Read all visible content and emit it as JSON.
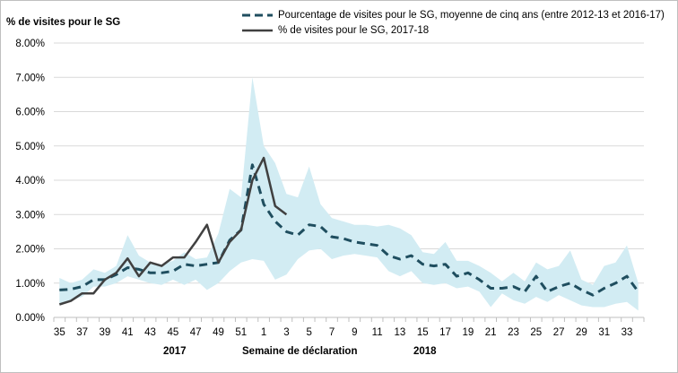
{
  "chart_data": {
    "type": "line",
    "ylabel": "% de visites pour le SG",
    "xlabel": "Semaine de déclaration",
    "year_labels": [
      "2017",
      "2018"
    ],
    "ylim": [
      0,
      8
    ],
    "y_ticks": [
      "0.00%",
      "1.00%",
      "2.00%",
      "3.00%",
      "4.00%",
      "5.00%",
      "6.00%",
      "7.00%",
      "8.00%"
    ],
    "x_weeks": [
      35,
      36,
      37,
      38,
      39,
      40,
      41,
      42,
      43,
      44,
      45,
      46,
      47,
      48,
      49,
      50,
      51,
      52,
      1,
      2,
      3,
      4,
      5,
      6,
      7,
      8,
      9,
      10,
      11,
      12,
      13,
      14,
      15,
      16,
      17,
      18,
      19,
      20,
      21,
      22,
      23,
      24,
      25,
      26,
      27,
      28,
      29,
      30,
      31,
      32,
      33,
      34
    ],
    "x_tick_labels": [
      "35",
      "37",
      "39",
      "41",
      "43",
      "45",
      "47",
      "49",
      "51",
      "1",
      "3",
      "5",
      "7",
      "9",
      "11",
      "13",
      "15",
      "17",
      "19",
      "21",
      "23",
      "25",
      "27",
      "29",
      "31",
      "33"
    ],
    "grid": "horizontal",
    "legend_position": "top",
    "colors": {
      "avg": "#1f4e5f",
      "current": "#404040",
      "band": "#d2ecf3"
    },
    "series": [
      {
        "name": "Pourcentage de visites pour le SG, moyenne de cinq ans (entre 2012-13 et 2016-17)",
        "style": "dashed",
        "values": [
          0.8,
          0.82,
          0.9,
          1.1,
          1.1,
          1.25,
          1.45,
          1.4,
          1.3,
          1.3,
          1.35,
          1.55,
          1.5,
          1.55,
          1.6,
          2.25,
          2.55,
          4.45,
          3.3,
          2.8,
          2.5,
          2.4,
          2.7,
          2.65,
          2.35,
          2.3,
          2.2,
          2.15,
          2.1,
          1.8,
          1.7,
          1.8,
          1.55,
          1.5,
          1.55,
          1.2,
          1.3,
          1.1,
          0.85,
          0.85,
          0.9,
          0.75,
          1.2,
          0.75,
          0.9,
          1.0,
          0.8,
          0.65,
          0.85,
          1.0,
          1.2,
          0.75
        ]
      },
      {
        "name": "% de visites pour le SG, 2017-18",
        "style": "solid",
        "values": [
          0.38,
          0.48,
          0.7,
          0.7,
          1.1,
          1.3,
          1.72,
          1.2,
          1.6,
          1.5,
          1.75,
          1.75,
          2.2,
          2.7,
          1.6,
          2.2,
          2.55,
          4.0,
          4.65,
          3.25,
          3.0
        ]
      },
      {
        "name": "band-upper",
        "style": "area",
        "values": [
          1.15,
          1.0,
          1.1,
          1.4,
          1.3,
          1.5,
          2.4,
          1.8,
          1.6,
          1.55,
          1.65,
          1.9,
          1.7,
          1.75,
          2.45,
          3.75,
          3.5,
          7.0,
          5.0,
          4.5,
          3.6,
          3.5,
          4.4,
          3.3,
          2.9,
          2.8,
          2.7,
          2.7,
          2.65,
          2.7,
          2.6,
          2.4,
          1.9,
          1.85,
          2.2,
          1.65,
          1.65,
          1.5,
          1.3,
          1.05,
          1.3,
          1.05,
          1.6,
          1.4,
          1.5,
          1.95,
          1.1,
          0.95,
          1.5,
          1.6,
          2.1,
          1.0
        ]
      },
      {
        "name": "band-lower",
        "style": "area",
        "values": [
          0.4,
          0.5,
          0.6,
          0.9,
          0.9,
          1.0,
          1.2,
          1.1,
          1.0,
          0.95,
          1.1,
          0.95,
          1.1,
          0.8,
          1.0,
          1.35,
          1.6,
          1.7,
          1.65,
          1.1,
          1.25,
          1.7,
          1.95,
          2.0,
          1.7,
          1.8,
          1.85,
          1.8,
          1.75,
          1.35,
          1.2,
          1.35,
          1.0,
          0.95,
          1.0,
          0.85,
          0.9,
          0.75,
          0.3,
          0.7,
          0.5,
          0.4,
          0.6,
          0.45,
          0.65,
          0.5,
          0.35,
          0.3,
          0.3,
          0.4,
          0.45,
          0.2
        ]
      }
    ]
  }
}
